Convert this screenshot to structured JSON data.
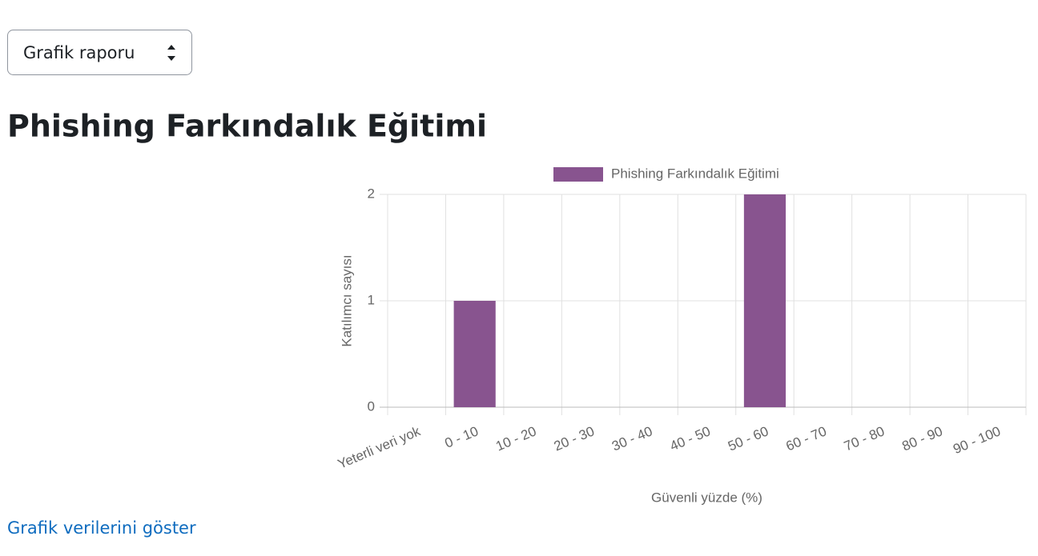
{
  "select": {
    "label": "Grafik raporu"
  },
  "heading": "Phishing Farkındalık Eğitimi",
  "chart_data": {
    "type": "bar",
    "categories": [
      "Yeterli veri yok",
      "0 - 10",
      "10 - 20",
      "20 - 30",
      "30 - 40",
      "40 - 50",
      "50 - 60",
      "60 - 70",
      "70 - 80",
      "80 - 90",
      "90 - 100"
    ],
    "series": [
      {
        "name": "Phishing Farkındalık Eğitimi",
        "color": "#88548f",
        "values": [
          0,
          1,
          0,
          0,
          0,
          0,
          2,
          0,
          0,
          0,
          0
        ]
      }
    ],
    "xlabel": "Güvenli yüzde (%)",
    "ylabel": "Katılımcı sayısı",
    "ylim": [
      0,
      2
    ],
    "yticks": [
      0,
      1,
      2
    ],
    "grid": true,
    "legend": "top"
  },
  "link": "Grafik verilerini göster"
}
